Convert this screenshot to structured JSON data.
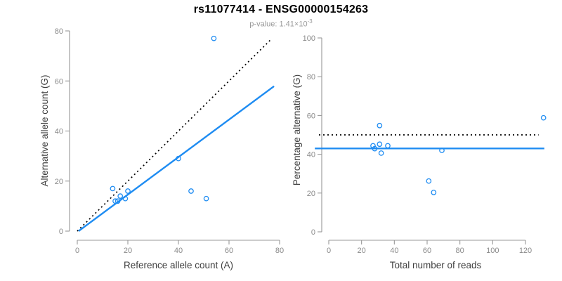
{
  "header": {
    "title": "rs11077414 - ENSG00000154263",
    "pvalue_prefix": "p-value: 1.41×10",
    "pvalue_exponent": "-3"
  },
  "colors": {
    "accent_blue": "#1E8CF2",
    "dotted_line": "#000000",
    "axis": "#989898",
    "tick_label": "#8a8a8a",
    "axis_title": "#3f3f3f",
    "title": "#000000",
    "subtitle": "#9a9a9a"
  },
  "chart_data": [
    {
      "id": "left",
      "type": "scatter",
      "xlabel": "Reference allele count (A)",
      "ylabel": "Alternative allele count (G)",
      "xlim": [
        0,
        80
      ],
      "ylim": [
        0,
        80
      ],
      "xticks": [
        0,
        20,
        40,
        60,
        80
      ],
      "yticks": [
        0,
        20,
        40,
        60,
        80
      ],
      "grid": false,
      "point_color": "#1E8CF2",
      "points": [
        [
          14,
          17
        ],
        [
          15,
          12
        ],
        [
          16,
          12
        ],
        [
          17,
          14
        ],
        [
          19,
          13
        ],
        [
          20,
          16
        ],
        [
          40,
          29
        ],
        [
          45,
          16
        ],
        [
          51,
          13
        ],
        [
          54,
          77
        ]
      ],
      "lines": [
        {
          "name": "identity-line",
          "style": "dotted",
          "color": "#000000",
          "x1": 0,
          "y1": 0,
          "x2": 77,
          "y2": 77
        },
        {
          "name": "fit-line",
          "style": "solid",
          "color": "#1E8CF2",
          "x1": 0.5,
          "y1": 0,
          "x2": 77.8,
          "y2": 57.9
        }
      ]
    },
    {
      "id": "right",
      "type": "scatter",
      "xlabel": "Total number of reads",
      "ylabel": "Percentage alternative (G)",
      "xlim": [
        0,
        131
      ],
      "ylim": [
        0,
        100
      ],
      "xticks": [
        0,
        20,
        40,
        60,
        80,
        100,
        120
      ],
      "yticks": [
        0,
        20,
        40,
        60,
        80,
        100
      ],
      "grid": false,
      "point_color": "#1E8CF2",
      "points": [
        [
          27,
          44.4
        ],
        [
          28,
          42.9
        ],
        [
          31,
          45.2
        ],
        [
          31,
          54.8
        ],
        [
          32,
          40.6
        ],
        [
          36,
          44.4
        ],
        [
          61,
          26.2
        ],
        [
          64,
          20.3
        ],
        [
          69,
          42.0
        ],
        [
          131,
          58.8
        ]
      ],
      "lines": [
        {
          "name": "null-50pct-line",
          "style": "dotted",
          "color": "#000000",
          "x1": -6,
          "y1": 50,
          "x2": 128,
          "y2": 50
        },
        {
          "name": "mean-pct-line",
          "style": "solid",
          "color": "#1E8CF2",
          "x1": -8.5,
          "y1": 43,
          "x2": 131.5,
          "y2": 43
        }
      ]
    }
  ]
}
